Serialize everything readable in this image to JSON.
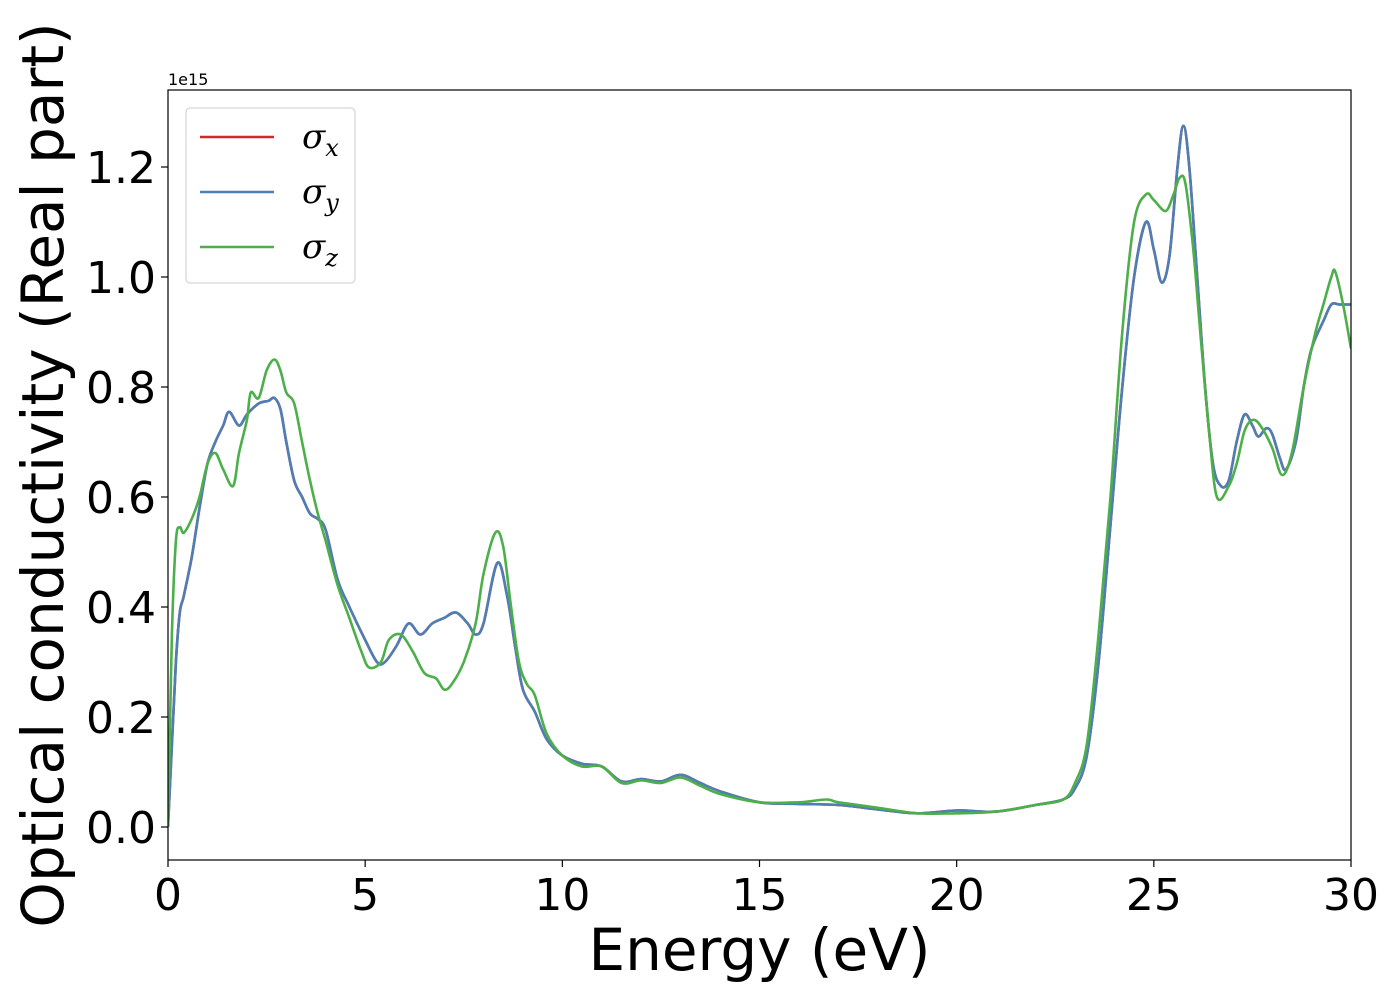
{
  "chart_data": {
    "type": "line",
    "title": "",
    "xlabel": "Energy (eV)",
    "ylabel": "Optical conductivity (Real part)",
    "y_offset_text": "1e15",
    "xlim": [
      0,
      30
    ],
    "ylim": [
      -0.06,
      1.34
    ],
    "grid": false,
    "legend_position": "top-left",
    "xticks": [
      0,
      5,
      10,
      15,
      20,
      25,
      30
    ],
    "xtick_labels": [
      "0",
      "5",
      "10",
      "15",
      "20",
      "25",
      "30"
    ],
    "yticks": [
      0.0,
      0.2,
      0.4,
      0.6,
      0.8,
      1.0,
      1.2
    ],
    "ytick_labels": [
      "0.0",
      "0.2",
      "0.4",
      "0.6",
      "0.8",
      "1.0",
      "1.2"
    ],
    "series": [
      {
        "name": "σx",
        "legend_symbol": "σ",
        "legend_sub": "x",
        "color": "#d62728",
        "x": [
          0,
          0.1,
          0.2,
          0.3,
          0.4,
          0.6,
          0.8,
          1.0,
          1.2,
          1.4,
          1.55,
          1.8,
          2.0,
          2.3,
          2.55,
          2.7,
          2.85,
          3.0,
          3.2,
          3.4,
          3.6,
          3.8,
          4.0,
          4.3,
          4.6,
          5.0,
          5.3,
          5.5,
          5.8,
          6.1,
          6.4,
          6.7,
          7.0,
          7.3,
          7.6,
          7.8,
          8.0,
          8.35,
          8.6,
          8.8,
          9.0,
          9.3,
          9.6,
          10.0,
          10.5,
          11.0,
          11.5,
          12.0,
          12.5,
          13.0,
          13.5,
          14.0,
          15.0,
          16.0,
          17.0,
          18.0,
          19.0,
          20.0,
          21.0,
          22.0,
          22.7,
          23.0,
          23.3,
          23.6,
          23.9,
          24.2,
          24.5,
          24.8,
          25.0,
          25.2,
          25.4,
          25.6,
          25.75,
          25.9,
          26.1,
          26.3,
          26.5,
          26.7,
          26.9,
          27.1,
          27.3,
          27.5,
          27.65,
          27.85,
          28.0,
          28.2,
          28.35,
          28.6,
          28.8,
          29.0,
          29.3,
          29.5,
          29.7,
          29.9,
          30.0
        ],
        "values": [
          0.0,
          0.15,
          0.3,
          0.39,
          0.42,
          0.49,
          0.58,
          0.66,
          0.7,
          0.73,
          0.755,
          0.73,
          0.75,
          0.77,
          0.775,
          0.78,
          0.76,
          0.7,
          0.63,
          0.6,
          0.57,
          0.56,
          0.54,
          0.45,
          0.4,
          0.34,
          0.3,
          0.3,
          0.33,
          0.37,
          0.35,
          0.37,
          0.38,
          0.39,
          0.37,
          0.35,
          0.37,
          0.48,
          0.42,
          0.33,
          0.25,
          0.21,
          0.16,
          0.13,
          0.115,
          0.11,
          0.083,
          0.087,
          0.083,
          0.095,
          0.08,
          0.065,
          0.045,
          0.042,
          0.04,
          0.032,
          0.025,
          0.03,
          0.028,
          0.04,
          0.05,
          0.07,
          0.13,
          0.3,
          0.55,
          0.8,
          1.0,
          1.1,
          1.05,
          0.99,
          1.04,
          1.2,
          1.275,
          1.2,
          1.0,
          0.8,
          0.66,
          0.62,
          0.63,
          0.7,
          0.75,
          0.73,
          0.71,
          0.725,
          0.715,
          0.67,
          0.65,
          0.7,
          0.8,
          0.87,
          0.92,
          0.95,
          0.95,
          0.95,
          0.95
        ]
      },
      {
        "name": "σy",
        "legend_symbol": "σ",
        "legend_sub": "y",
        "color": "#4c7fb5",
        "x": [
          0,
          0.1,
          0.2,
          0.3,
          0.4,
          0.6,
          0.8,
          1.0,
          1.2,
          1.4,
          1.55,
          1.8,
          2.0,
          2.3,
          2.55,
          2.7,
          2.85,
          3.0,
          3.2,
          3.4,
          3.6,
          3.8,
          4.0,
          4.3,
          4.6,
          5.0,
          5.3,
          5.5,
          5.8,
          6.1,
          6.4,
          6.7,
          7.0,
          7.3,
          7.6,
          7.8,
          8.0,
          8.35,
          8.6,
          8.8,
          9.0,
          9.3,
          9.6,
          10.0,
          10.5,
          11.0,
          11.5,
          12.0,
          12.5,
          13.0,
          13.5,
          14.0,
          15.0,
          16.0,
          17.0,
          18.0,
          19.0,
          20.0,
          21.0,
          22.0,
          22.7,
          23.0,
          23.3,
          23.6,
          23.9,
          24.2,
          24.5,
          24.8,
          25.0,
          25.2,
          25.4,
          25.6,
          25.75,
          25.9,
          26.1,
          26.3,
          26.5,
          26.7,
          26.9,
          27.1,
          27.3,
          27.5,
          27.65,
          27.85,
          28.0,
          28.2,
          28.35,
          28.6,
          28.8,
          29.0,
          29.3,
          29.5,
          29.7,
          29.9,
          30.0
        ],
        "values": [
          0.0,
          0.15,
          0.3,
          0.39,
          0.42,
          0.49,
          0.58,
          0.66,
          0.7,
          0.73,
          0.755,
          0.73,
          0.75,
          0.77,
          0.775,
          0.78,
          0.76,
          0.7,
          0.63,
          0.6,
          0.57,
          0.56,
          0.54,
          0.45,
          0.4,
          0.34,
          0.3,
          0.3,
          0.33,
          0.37,
          0.35,
          0.37,
          0.38,
          0.39,
          0.37,
          0.35,
          0.37,
          0.48,
          0.42,
          0.33,
          0.25,
          0.21,
          0.16,
          0.13,
          0.115,
          0.11,
          0.083,
          0.087,
          0.083,
          0.095,
          0.08,
          0.065,
          0.045,
          0.042,
          0.04,
          0.032,
          0.025,
          0.03,
          0.028,
          0.04,
          0.05,
          0.07,
          0.13,
          0.3,
          0.55,
          0.8,
          1.0,
          1.1,
          1.05,
          0.99,
          1.04,
          1.2,
          1.275,
          1.2,
          1.0,
          0.8,
          0.66,
          0.62,
          0.63,
          0.7,
          0.75,
          0.73,
          0.71,
          0.725,
          0.715,
          0.67,
          0.65,
          0.7,
          0.8,
          0.87,
          0.92,
          0.95,
          0.95,
          0.95,
          0.95
        ]
      },
      {
        "name": "σz",
        "legend_symbol": "σ",
        "legend_sub": "z",
        "color": "#4daf4a",
        "x": [
          0,
          0.1,
          0.2,
          0.3,
          0.4,
          0.6,
          0.8,
          1.0,
          1.2,
          1.4,
          1.65,
          1.8,
          2.0,
          2.1,
          2.3,
          2.5,
          2.7,
          2.85,
          3.0,
          3.2,
          3.4,
          3.6,
          3.8,
          4.0,
          4.3,
          4.6,
          4.9,
          5.1,
          5.4,
          5.6,
          5.9,
          6.2,
          6.5,
          6.8,
          7.0,
          7.2,
          7.5,
          7.8,
          8.0,
          8.3,
          8.5,
          8.7,
          8.9,
          9.1,
          9.3,
          9.6,
          10.0,
          10.5,
          11.0,
          11.5,
          12.0,
          12.5,
          13.0,
          13.5,
          14.0,
          15.0,
          16.0,
          16.7,
          17.0,
          18.0,
          19.0,
          20.0,
          21.0,
          22.0,
          22.7,
          23.0,
          23.3,
          23.6,
          23.9,
          24.2,
          24.5,
          24.8,
          25.0,
          25.3,
          25.5,
          25.65,
          25.8,
          26.0,
          26.2,
          26.4,
          26.6,
          26.9,
          27.1,
          27.3,
          27.5,
          27.7,
          28.0,
          28.25,
          28.5,
          28.8,
          29.1,
          29.3,
          29.5,
          29.6,
          29.8,
          30.0
        ],
        "values": [
          0.0,
          0.35,
          0.52,
          0.545,
          0.535,
          0.56,
          0.6,
          0.66,
          0.68,
          0.65,
          0.62,
          0.68,
          0.74,
          0.79,
          0.78,
          0.83,
          0.85,
          0.83,
          0.79,
          0.77,
          0.7,
          0.63,
          0.57,
          0.52,
          0.44,
          0.38,
          0.32,
          0.29,
          0.3,
          0.34,
          0.35,
          0.32,
          0.28,
          0.27,
          0.25,
          0.26,
          0.3,
          0.37,
          0.46,
          0.535,
          0.51,
          0.4,
          0.3,
          0.26,
          0.24,
          0.17,
          0.13,
          0.11,
          0.11,
          0.08,
          0.085,
          0.08,
          0.09,
          0.075,
          0.06,
          0.045,
          0.045,
          0.05,
          0.045,
          0.035,
          0.025,
          0.025,
          0.028,
          0.04,
          0.05,
          0.08,
          0.15,
          0.35,
          0.6,
          0.9,
          1.1,
          1.15,
          1.14,
          1.12,
          1.15,
          1.18,
          1.17,
          1.05,
          0.88,
          0.72,
          0.6,
          0.62,
          0.66,
          0.72,
          0.74,
          0.73,
          0.69,
          0.64,
          0.68,
          0.8,
          0.9,
          0.95,
          1.0,
          1.01,
          0.95,
          0.87
        ]
      }
    ]
  }
}
